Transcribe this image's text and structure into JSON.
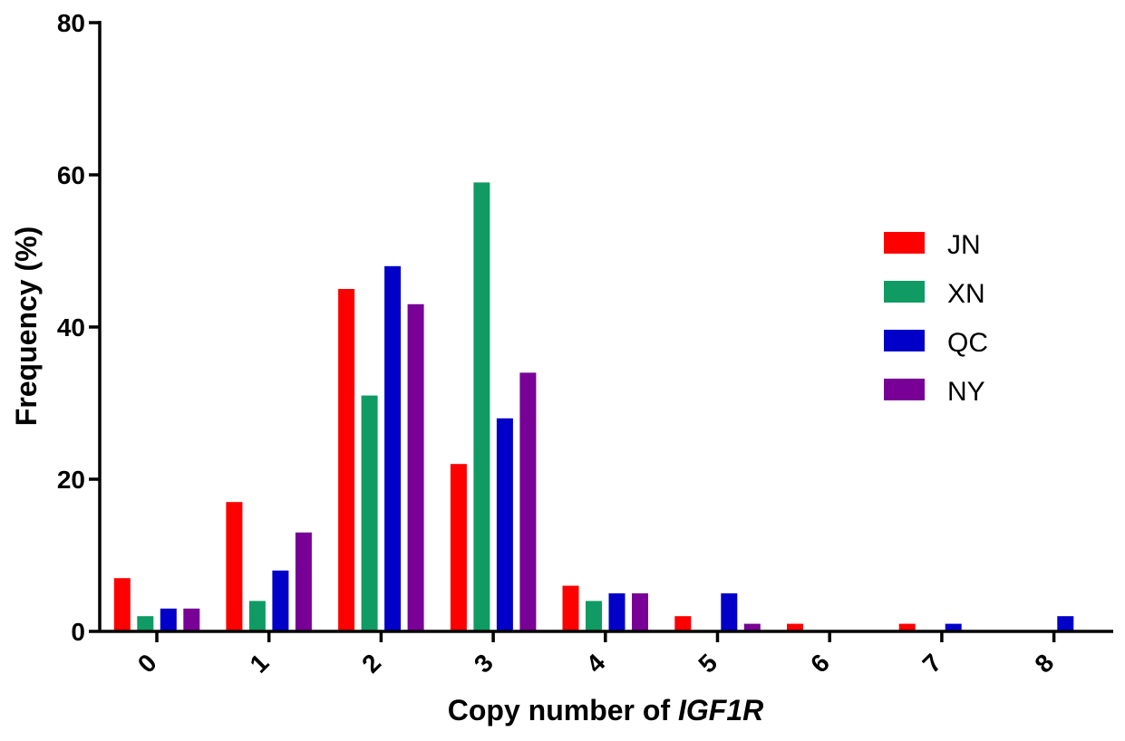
{
  "chart_data": {
    "type": "bar",
    "categories": [
      "0",
      "1",
      "2",
      "3",
      "4",
      "5",
      "6",
      "7",
      "8"
    ],
    "series": [
      {
        "name": "JN",
        "color": "#ff0000",
        "values": [
          7,
          17,
          45,
          22,
          6,
          2,
          1,
          1,
          0
        ]
      },
      {
        "name": "XN",
        "color": "#0f9b63",
        "values": [
          2,
          4,
          31,
          59,
          4,
          0,
          0,
          0,
          0
        ]
      },
      {
        "name": "QC",
        "color": "#0000c8",
        "values": [
          3,
          8,
          48,
          28,
          5,
          5,
          0,
          1,
          2
        ]
      },
      {
        "name": "NY",
        "color": "#780096",
        "values": [
          3,
          13,
          43,
          34,
          5,
          1,
          0,
          0,
          0
        ]
      }
    ],
    "xlabel_prefix": "Copy number of ",
    "xlabel_gene": "IGF1R",
    "ylabel": "Frequency (%)",
    "ylim": [
      0,
      80
    ],
    "yticks": [
      "0",
      "20",
      "40",
      "60",
      "80"
    ],
    "legend_position": "right",
    "grid": false
  }
}
